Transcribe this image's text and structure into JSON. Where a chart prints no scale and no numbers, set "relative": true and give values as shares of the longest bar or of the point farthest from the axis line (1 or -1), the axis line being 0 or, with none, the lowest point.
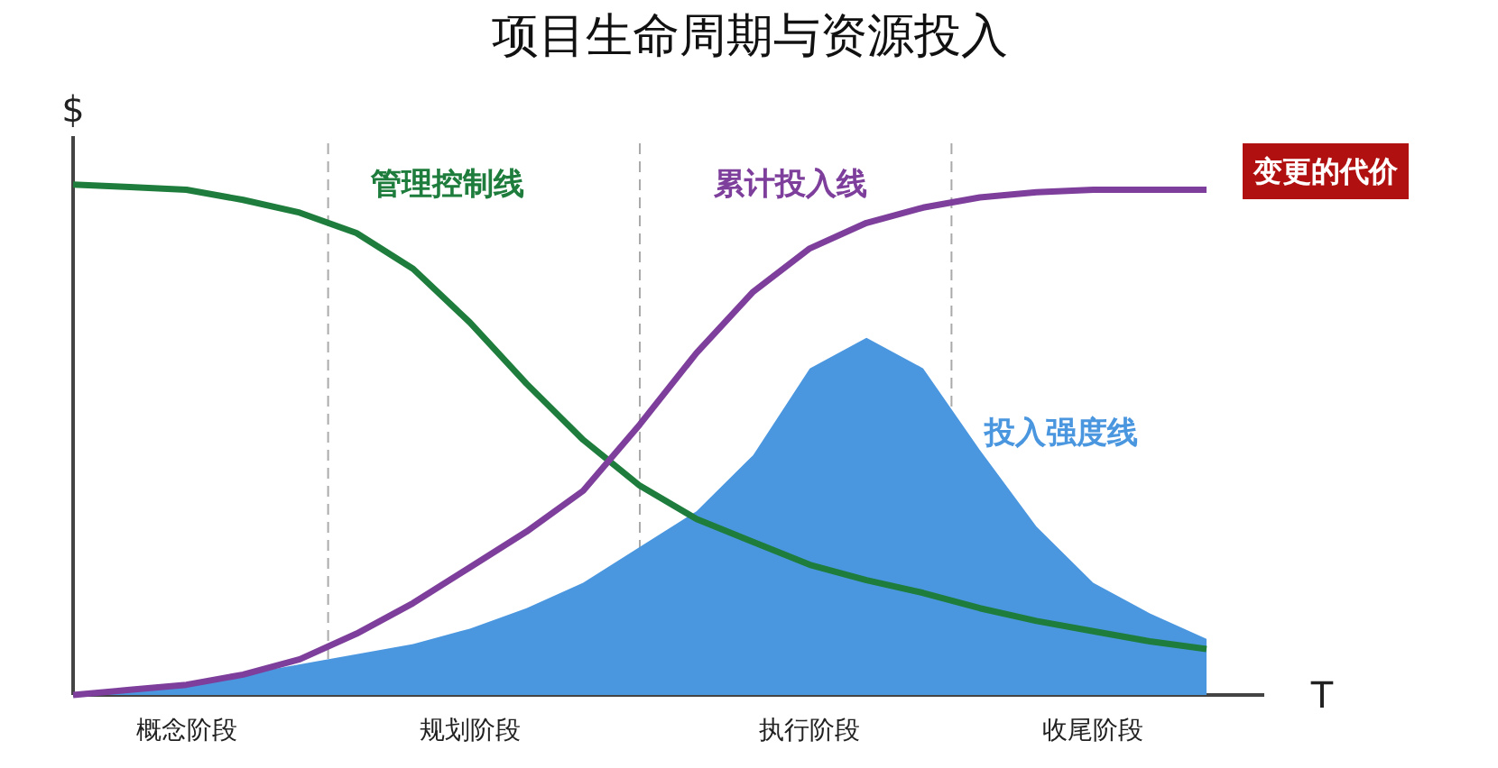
{
  "chart_data": {
    "type": "line",
    "title": "项目生命周期与资源投入",
    "xlabel": "T",
    "ylabel": "$",
    "relative": true,
    "categories": [
      null,
      null,
      "概念阶段",
      null,
      null,
      null,
      null,
      "规划阶段",
      null,
      null,
      null,
      null,
      null,
      "执行阶段",
      null,
      null,
      null,
      null,
      "收尾阶段",
      null,
      null
    ],
    "grid": "x",
    "legend": false,
    "marker": "none",
    "line_style": "solid",
    "annotations": [
      "变更的代价"
    ],
    "series": [
      {
        "name": "投入强度线",
        "type": "area",
        "color": "#4a97e0",
        "values": [
          0,
          0.01,
          0.02,
          0.04,
          0.06,
          0.08,
          0.1,
          0.13,
          0.17,
          0.22,
          0.29,
          0.36,
          0.47,
          0.64,
          0.7,
          0.64,
          0.48,
          0.33,
          0.22,
          0.16,
          0.11
        ]
      },
      {
        "name": "管理控制线",
        "color": "#1e7d3c",
        "values": [
          1.0,
          0.995,
          0.99,
          0.97,
          0.945,
          0.905,
          0.835,
          0.73,
          0.61,
          0.5,
          0.41,
          0.345,
          0.3,
          0.255,
          0.225,
          0.2,
          0.17,
          0.145,
          0.125,
          0.105,
          0.09
        ]
      },
      {
        "name": "累计投入线",
        "color": "#7d3f9b",
        "values": [
          0,
          0.01,
          0.02,
          0.04,
          0.07,
          0.12,
          0.18,
          0.25,
          0.32,
          0.4,
          0.53,
          0.67,
          0.79,
          0.875,
          0.925,
          0.955,
          0.975,
          0.985,
          0.99,
          0.99,
          0.99
        ]
      }
    ]
  }
}
